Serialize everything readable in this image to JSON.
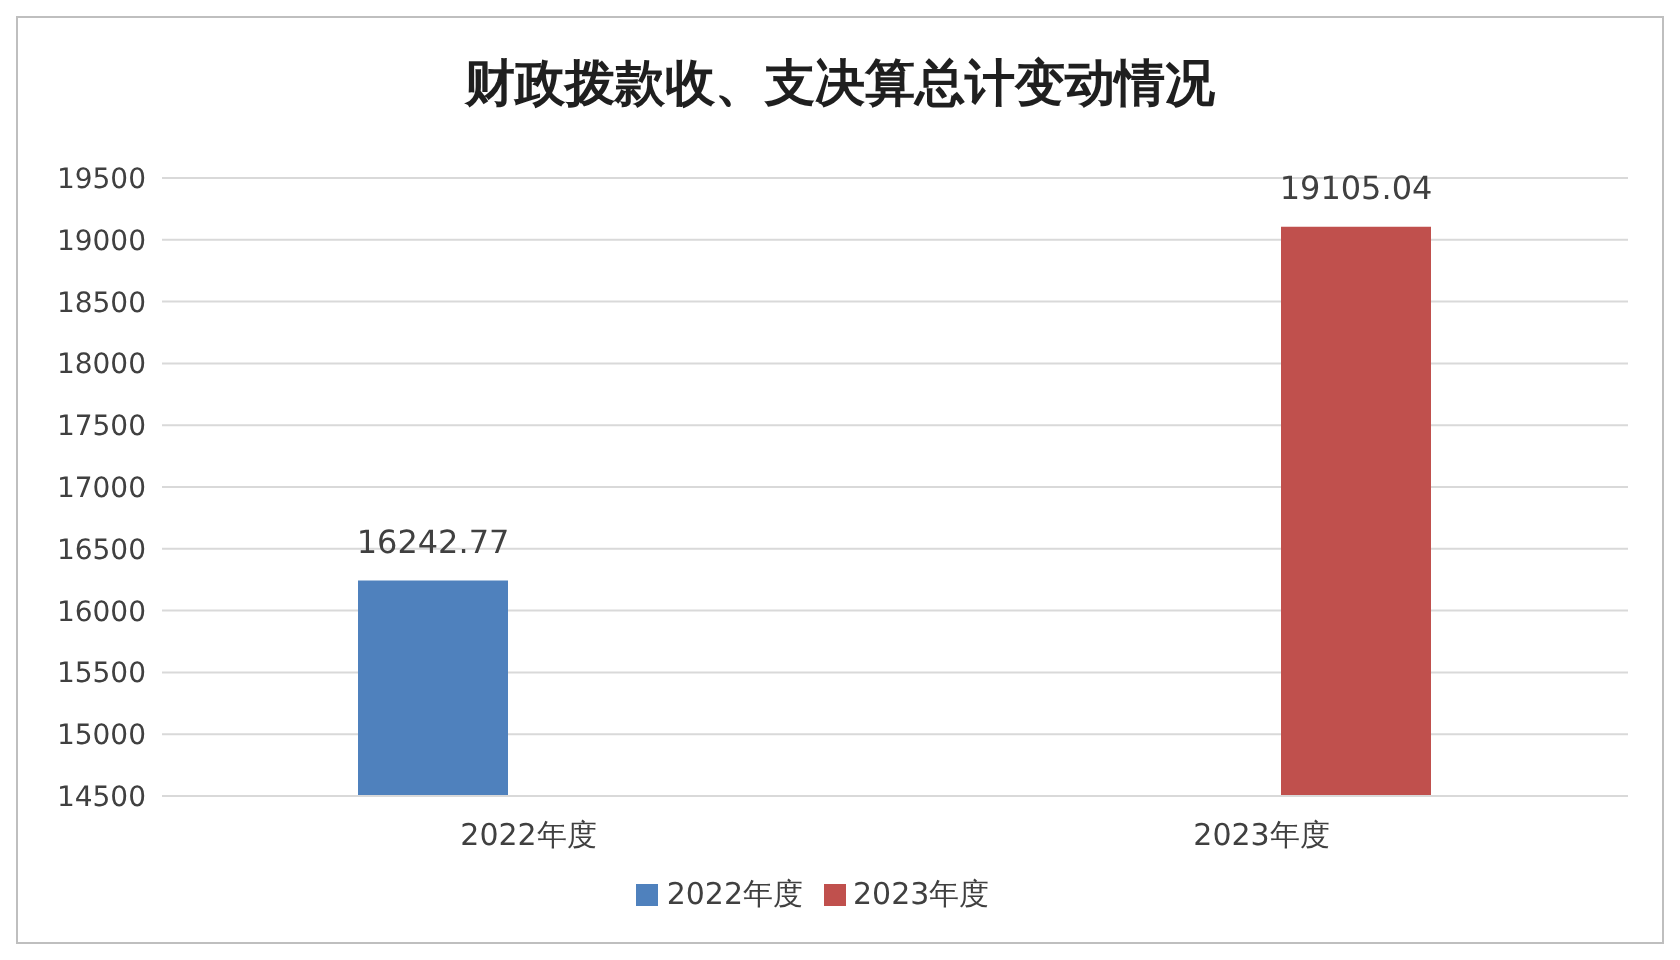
{
  "chart_data": {
    "type": "bar",
    "title": "财政拨款收、支决算总计变动情况",
    "categories": [
      "2022年度",
      "2023年度"
    ],
    "series": [
      {
        "name": "2022年度",
        "color": "#4f81bd",
        "values": [
          16242.77,
          null
        ]
      },
      {
        "name": "2023年度",
        "color": "#c0504d",
        "values": [
          null,
          19105.04
        ]
      }
    ],
    "ylim": [
      14500,
      19500
    ],
    "yticks": [
      14500,
      15000,
      15500,
      16000,
      16500,
      17000,
      17500,
      18000,
      18500,
      19000,
      19500
    ],
    "grid": "y",
    "legend": "bottom",
    "data_labels": true
  }
}
